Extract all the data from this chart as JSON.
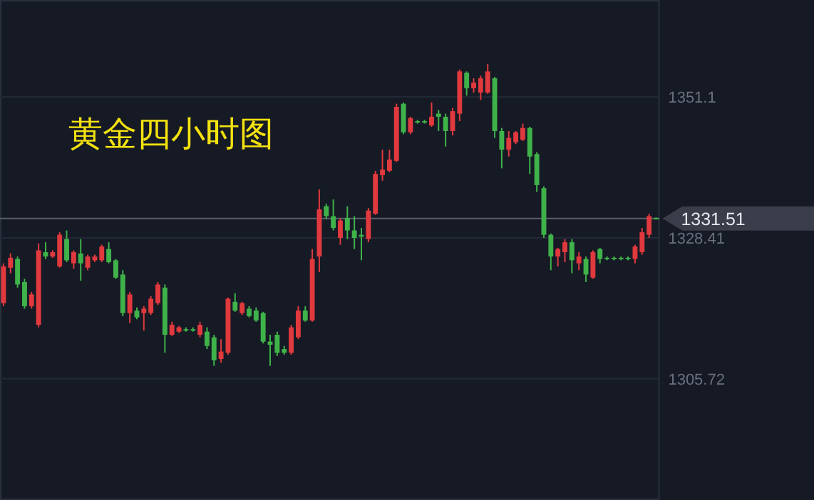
{
  "chart_data": {
    "type": "candlestick",
    "title": "黄金四小时图",
    "categories": [
      null,
      null,
      null,
      null,
      null,
      null,
      null,
      null,
      null,
      null,
      null,
      null,
      null,
      null,
      null,
      null,
      null,
      null,
      null,
      null,
      null,
      null,
      null,
      null,
      null,
      null,
      null,
      null,
      null,
      null,
      null,
      null,
      null,
      null,
      null,
      null,
      null,
      null,
      null,
      null,
      null,
      null,
      null,
      null,
      null,
      null,
      null,
      null,
      null,
      null,
      null,
      null,
      null,
      null,
      null,
      null,
      null,
      null,
      null,
      null,
      null,
      null,
      null,
      null,
      null,
      null,
      null,
      null,
      null,
      null,
      null,
      null,
      null,
      null,
      null,
      null,
      null,
      null,
      null,
      null,
      null,
      null,
      null,
      null,
      null,
      null,
      null,
      null,
      null,
      null,
      null,
      null,
      null,
      null
    ],
    "ohlc": [
      [
        1317.9,
        1324.3,
        1317.4,
        1323.8
      ],
      [
        1323.6,
        1325.9,
        1322.7,
        1325.2
      ],
      [
        1325.0,
        1325.4,
        1320.4,
        1320.9
      ],
      [
        1321.3,
        1321.8,
        1317.0,
        1317.4
      ],
      [
        1317.4,
        1319.7,
        1317.0,
        1319.3
      ],
      [
        1314.4,
        1327.5,
        1314.0,
        1326.4
      ],
      [
        1326.1,
        1327.7,
        1325.0,
        1325.4
      ],
      [
        1325.4,
        1326.4,
        1325.2,
        1326.1
      ],
      [
        1323.8,
        1329.3,
        1323.6,
        1328.9
      ],
      [
        1328.2,
        1329.6,
        1324.5,
        1324.8
      ],
      [
        1324.3,
        1326.4,
        1323.4,
        1326.1
      ],
      [
        1325.9,
        1328.2,
        1321.5,
        1324.3
      ],
      [
        1323.6,
        1325.7,
        1323.2,
        1325.4
      ],
      [
        1324.8,
        1325.7,
        1324.5,
        1325.4
      ],
      [
        1324.8,
        1327.3,
        1324.5,
        1327.0
      ],
      [
        1326.6,
        1327.7,
        1324.3,
        1324.5
      ],
      [
        1324.8,
        1325.0,
        1321.8,
        1322.0
      ],
      [
        1322.5,
        1323.2,
        1315.8,
        1316.3
      ],
      [
        1316.3,
        1319.7,
        1314.7,
        1319.3
      ],
      [
        1316.7,
        1317.2,
        1315.3,
        1315.6
      ],
      [
        1316.3,
        1317.4,
        1313.5,
        1317.0
      ],
      [
        1316.3,
        1319.0,
        1316.0,
        1318.6
      ],
      [
        1317.9,
        1321.3,
        1317.6,
        1320.9
      ],
      [
        1320.4,
        1320.9,
        1309.9,
        1312.8
      ],
      [
        1312.8,
        1314.9,
        1312.6,
        1314.4
      ],
      [
        1313.3,
        1314.2,
        1313.1,
        1314.0
      ],
      [
        1313.7,
        1314.0,
        1313.3,
        1313.5
      ],
      [
        1313.7,
        1314.0,
        1313.3,
        1313.5
      ],
      [
        1312.8,
        1314.9,
        1312.4,
        1314.4
      ],
      [
        1313.3,
        1314.0,
        1310.5,
        1311.0
      ],
      [
        1312.4,
        1312.8,
        1307.8,
        1308.7
      ],
      [
        1308.9,
        1312.1,
        1308.3,
        1310.1
      ],
      [
        1309.9,
        1318.8,
        1309.6,
        1318.6
      ],
      [
        1318.1,
        1319.5,
        1316.5,
        1316.7
      ],
      [
        1316.3,
        1318.1,
        1316.0,
        1317.9
      ],
      [
        1317.0,
        1317.4,
        1315.6,
        1315.8
      ],
      [
        1316.7,
        1317.2,
        1314.9,
        1315.1
      ],
      [
        1316.3,
        1316.5,
        1311.4,
        1311.7
      ],
      [
        1311.7,
        1312.8,
        1307.8,
        1311.2
      ],
      [
        1312.8,
        1313.3,
        1309.4,
        1309.9
      ],
      [
        1310.5,
        1311.0,
        1309.6,
        1309.9
      ],
      [
        1309.9,
        1314.4,
        1309.6,
        1314.0
      ],
      [
        1312.4,
        1317.4,
        1312.1,
        1316.7
      ],
      [
        1316.7,
        1317.4,
        1314.9,
        1315.1
      ],
      [
        1315.1,
        1326.6,
        1314.9,
        1325.0
      ],
      [
        1325.4,
        1336.2,
        1322.9,
        1333.0
      ],
      [
        1333.5,
        1333.9,
        1331.4,
        1331.9
      ],
      [
        1331.9,
        1334.6,
        1329.6,
        1330.0
      ],
      [
        1328.4,
        1331.6,
        1327.3,
        1331.2
      ],
      [
        1331.6,
        1333.5,
        1328.2,
        1329.6
      ],
      [
        1329.6,
        1331.9,
        1326.6,
        1328.4
      ],
      [
        1328.9,
        1330.0,
        1324.8,
        1328.6
      ],
      [
        1328.2,
        1333.2,
        1327.7,
        1332.8
      ],
      [
        1332.3,
        1339.2,
        1332.1,
        1338.7
      ],
      [
        1338.5,
        1342.6,
        1337.6,
        1339.4
      ],
      [
        1339.2,
        1342.6,
        1339.0,
        1341.0
      ],
      [
        1340.8,
        1350.0,
        1340.6,
        1349.5
      ],
      [
        1350.0,
        1350.2,
        1345.1,
        1345.4
      ],
      [
        1345.4,
        1347.9,
        1345.1,
        1347.7
      ],
      [
        1347.2,
        1347.4,
        1346.8,
        1347.0
      ],
      [
        1347.2,
        1347.4,
        1346.8,
        1347.0
      ],
      [
        1346.5,
        1350.2,
        1346.3,
        1347.9
      ],
      [
        1348.4,
        1349.0,
        1345.6,
        1347.9
      ],
      [
        1347.9,
        1348.4,
        1343.1,
        1345.6
      ],
      [
        1345.6,
        1349.3,
        1344.9,
        1348.8
      ],
      [
        1348.4,
        1355.5,
        1347.2,
        1355.2
      ],
      [
        1355.0,
        1355.2,
        1351.3,
        1352.5
      ],
      [
        1352.5,
        1354.1,
        1351.8,
        1353.4
      ],
      [
        1351.8,
        1354.5,
        1350.6,
        1354.1
      ],
      [
        1351.8,
        1356.4,
        1351.6,
        1355.2
      ],
      [
        1354.1,
        1354.3,
        1344.5,
        1345.6
      ],
      [
        1345.6,
        1346.1,
        1339.6,
        1342.6
      ],
      [
        1342.6,
        1345.6,
        1341.5,
        1344.5
      ],
      [
        1343.8,
        1345.6,
        1343.5,
        1345.4
      ],
      [
        1344.2,
        1346.8,
        1344.0,
        1346.1
      ],
      [
        1346.1,
        1346.3,
        1338.7,
        1341.5
      ],
      [
        1341.9,
        1342.2,
        1335.8,
        1336.9
      ],
      [
        1336.4,
        1336.7,
        1328.4,
        1328.9
      ],
      [
        1328.9,
        1329.1,
        1323.2,
        1325.4
      ],
      [
        1325.4,
        1326.8,
        1323.8,
        1326.6
      ],
      [
        1326.1,
        1328.2,
        1324.5,
        1327.7
      ],
      [
        1327.7,
        1328.2,
        1322.7,
        1324.8
      ],
      [
        1324.3,
        1326.1,
        1323.2,
        1325.4
      ],
      [
        1325.0,
        1325.4,
        1321.3,
        1322.5
      ],
      [
        1322.0,
        1326.4,
        1321.8,
        1326.1
      ],
      [
        1326.6,
        1326.8,
        1324.3,
        1325.0
      ],
      [
        1325.2,
        1325.4,
        1324.8,
        1325.0
      ],
      [
        1325.2,
        1325.4,
        1324.8,
        1325.0
      ],
      [
        1325.2,
        1325.4,
        1324.8,
        1325.0
      ],
      [
        1325.2,
        1325.4,
        1324.8,
        1325.0
      ],
      [
        1325.0,
        1327.3,
        1324.3,
        1327.0
      ],
      [
        1326.1,
        1330.0,
        1325.7,
        1329.3
      ],
      [
        1328.9,
        1332.3,
        1328.4,
        1331.9
      ],
      [
        1331.6,
        1331.7,
        1331.4,
        1331.51
      ]
    ],
    "colors": [
      "#e0393e",
      "#e0393e",
      "#3fb24a",
      "#3fb24a",
      "#e0393e",
      "#e0393e",
      "#3fb24a",
      "#e0393e",
      "#e0393e",
      "#3fb24a",
      "#e0393e",
      "#3fb24a",
      "#e0393e",
      "#e0393e",
      "#e0393e",
      "#3fb24a",
      "#3fb24a",
      "#3fb24a",
      "#e0393e",
      "#3fb24a",
      "#e0393e",
      "#e0393e",
      "#e0393e",
      "#3fb24a",
      "#e0393e",
      "#e0393e",
      "#3fb24a",
      "#3fb24a",
      "#e0393e",
      "#3fb24a",
      "#3fb24a",
      "#e0393e",
      "#e0393e",
      "#3fb24a",
      "#e0393e",
      "#3fb24a",
      "#3fb24a",
      "#3fb24a",
      "#3fb24a",
      "#3fb24a",
      "#3fb24a",
      "#e0393e",
      "#e0393e",
      "#3fb24a",
      "#e0393e",
      "#e0393e",
      "#3fb24a",
      "#3fb24a",
      "#e0393e",
      "#3fb24a",
      "#3fb24a",
      "#3fb24a",
      "#e0393e",
      "#e0393e",
      "#e0393e",
      "#e0393e",
      "#e0393e",
      "#3fb24a",
      "#e0393e",
      "#3fb24a",
      "#3fb24a",
      "#e0393e",
      "#3fb24a",
      "#3fb24a",
      "#e0393e",
      "#e0393e",
      "#3fb24a",
      "#e0393e",
      "#e0393e",
      "#e0393e",
      "#3fb24a",
      "#3fb24a",
      "#e0393e",
      "#e0393e",
      "#e0393e",
      "#3fb24a",
      "#3fb24a",
      "#3fb24a",
      "#3fb24a",
      "#e0393e",
      "#e0393e",
      "#3fb24a",
      "#e0393e",
      "#3fb24a",
      "#e0393e",
      "#3fb24a",
      "#3fb24a",
      "#3fb24a",
      "#3fb24a",
      "#3fb24a",
      "#e0393e",
      "#e0393e",
      "#e0393e",
      "#3fb24a"
    ],
    "ylim": [
      1286.2,
      1366.7
    ],
    "yticks": [
      1305.72,
      1328.41,
      1351.1
    ],
    "grid": "y",
    "ref_lines": [
      {
        "axis": "y",
        "value": 1331.51,
        "label": "1331.51",
        "color": "#5a5f6b"
      }
    ]
  }
}
